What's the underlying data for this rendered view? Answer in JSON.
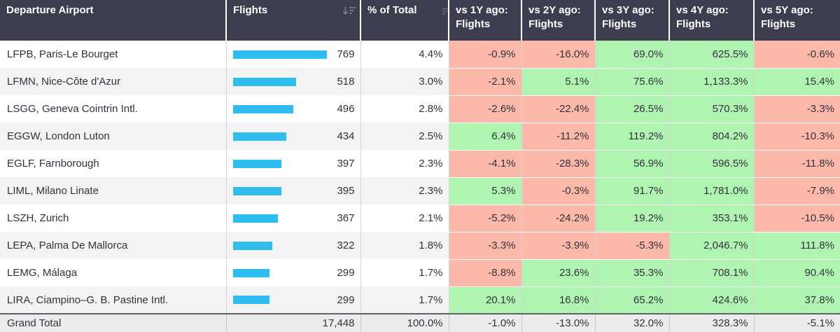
{
  "table": {
    "columns": [
      {
        "label": "Departure Airport"
      },
      {
        "label": "Flights",
        "icon": "sort-descending-icon"
      },
      {
        "label": "% of Total",
        "icon": "sort-lines-icon"
      },
      {
        "label": "vs 1Y ago: Flights"
      },
      {
        "label": "vs 2Y ago: Flights"
      },
      {
        "label": "vs 3Y ago: Flights"
      },
      {
        "label": "vs 4Y ago: Flights"
      },
      {
        "label": "vs 5Y ago: Flights"
      }
    ],
    "rows": [
      {
        "airport": "LFPB, Paris-Le Bourget",
        "flights": "769",
        "flights_value": 769,
        "pct": "4.4%",
        "vs1y": "-0.9%",
        "vs2y": "-16.0%",
        "vs3y": "69.0%",
        "vs4y": "625.5%",
        "vs5y": "-0.6%"
      },
      {
        "airport": "LFMN, Nice-Côte d'Azur",
        "flights": "518",
        "flights_value": 518,
        "pct": "3.0%",
        "vs1y": "-2.1%",
        "vs2y": "5.1%",
        "vs3y": "75.6%",
        "vs4y": "1,133.3%",
        "vs5y": "15.4%"
      },
      {
        "airport": "LSGG, Geneva Cointrin Intl.",
        "flights": "496",
        "flights_value": 496,
        "pct": "2.8%",
        "vs1y": "-2.6%",
        "vs2y": "-22.4%",
        "vs3y": "26.5%",
        "vs4y": "570.3%",
        "vs5y": "-3.3%"
      },
      {
        "airport": "EGGW, London Luton",
        "flights": "434",
        "flights_value": 434,
        "pct": "2.5%",
        "vs1y": "6.4%",
        "vs2y": "-11.2%",
        "vs3y": "119.2%",
        "vs4y": "804.2%",
        "vs5y": "-10.3%"
      },
      {
        "airport": "EGLF, Farnborough",
        "flights": "397",
        "flights_value": 397,
        "pct": "2.3%",
        "vs1y": "-4.1%",
        "vs2y": "-28.3%",
        "vs3y": "56.9%",
        "vs4y": "596.5%",
        "vs5y": "-11.8%"
      },
      {
        "airport": "LIML, Milano Linate",
        "flights": "395",
        "flights_value": 395,
        "pct": "2.3%",
        "vs1y": "5.3%",
        "vs2y": "-0.3%",
        "vs3y": "91.7%",
        "vs4y": "1,781.0%",
        "vs5y": "-7.9%"
      },
      {
        "airport": "LSZH, Zurich",
        "flights": "367",
        "flights_value": 367,
        "pct": "2.1%",
        "vs1y": "-5.2%",
        "vs2y": "-24.2%",
        "vs3y": "19.2%",
        "vs4y": "353.1%",
        "vs5y": "-10.5%"
      },
      {
        "airport": "LEPA, Palma De Mallorca",
        "flights": "322",
        "flights_value": 322,
        "pct": "1.8%",
        "vs1y": "-3.3%",
        "vs2y": "-3.9%",
        "vs3y": "-5.3%",
        "vs4y": "2,046.7%",
        "vs5y": "111.8%"
      },
      {
        "airport": "LEMG, Málaga",
        "flights": "299",
        "flights_value": 299,
        "pct": "1.7%",
        "vs1y": "-8.8%",
        "vs2y": "23.6%",
        "vs3y": "35.3%",
        "vs4y": "708.1%",
        "vs5y": "90.4%"
      },
      {
        "airport": "LIRA, Ciampino–G. B. Pastine Intl.",
        "flights": "299",
        "flights_value": 299,
        "pct": "1.7%",
        "vs1y": "20.1%",
        "vs2y": "16.8%",
        "vs3y": "65.2%",
        "vs4y": "424.6%",
        "vs5y": "37.8%"
      }
    ],
    "grand_total": {
      "label": "Grand Total",
      "flights": "17,448",
      "pct": "100.0%",
      "vs1y": "-1.0%",
      "vs2y": "-13.0%",
      "vs3y": "32.0%",
      "vs4y": "328.3%",
      "vs5y": "-5.1%"
    }
  },
  "colors": {
    "header_bg": "#3d3d4f",
    "header_text": "#ffffff",
    "bar": "#2ebdee",
    "positive_bg": "#b0f4b2",
    "negative_bg": "#fcb8a8",
    "row_alt_bg": "#f3f3f3",
    "grand_total_bg": "#ececec"
  }
}
